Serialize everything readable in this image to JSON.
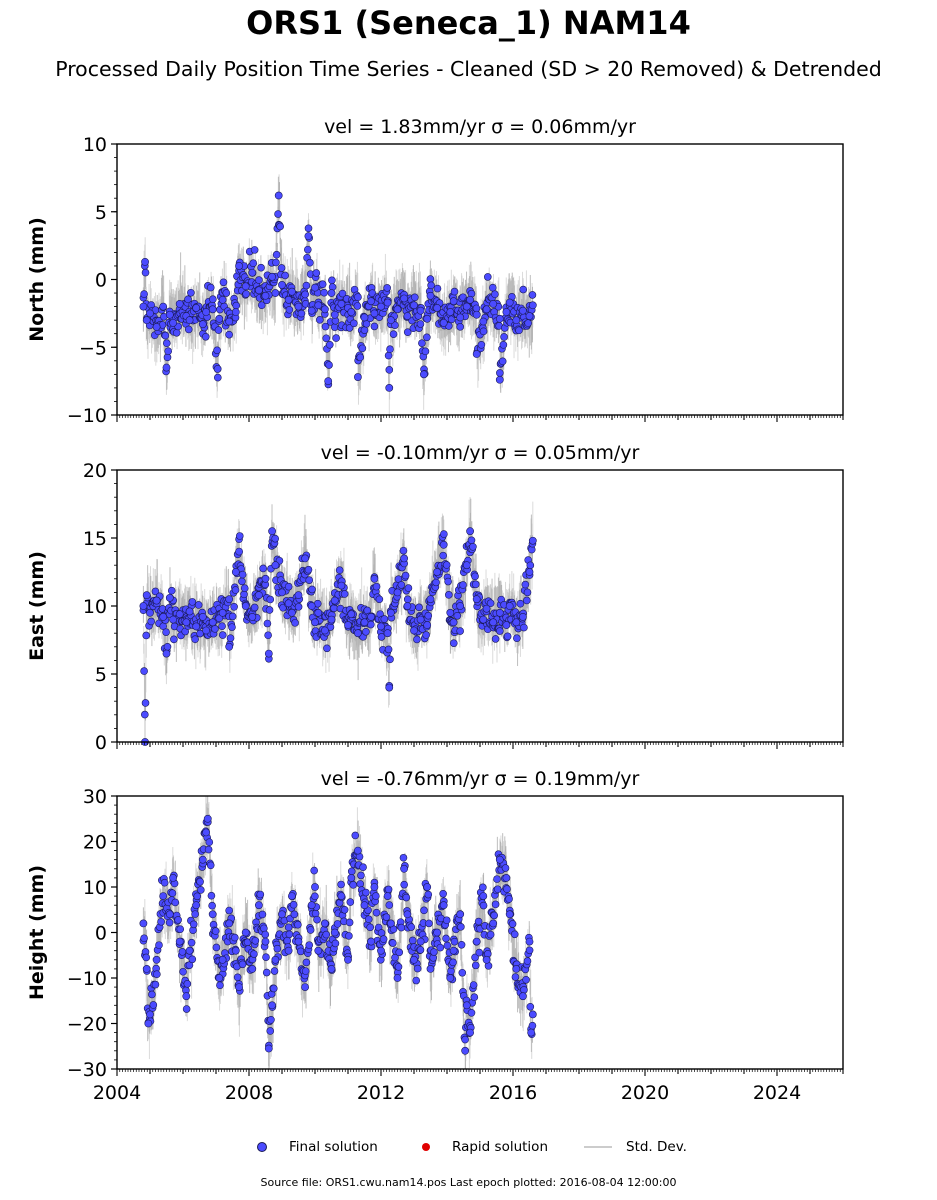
{
  "figure": {
    "title": "ORS1 (Seneca_1) NAM14",
    "subtitle": "Processed Daily Position Time Series - Cleaned (SD > 20 Removed) & Detrended",
    "source_note": "Source file: ORS1.cwu.nam14.pos  Last epoch plotted: 2016-08-04 12:00:00"
  },
  "legend": {
    "final_label": "Final solution",
    "rapid_label": "Rapid solution",
    "std_label": "Std. Dev."
  },
  "colors": {
    "final": "#4b4bff",
    "final_edge": "#1a1a55",
    "rapid": "#e00000",
    "std_dev": "#bdbdbd",
    "axes": "#000000"
  },
  "chart_data": [
    {
      "type": "scatter",
      "title": "vel = 1.83mm/yr   σ = 0.06mm/yr",
      "ylabel": "North (mm)",
      "xlim": [
        2004.0,
        2026.0
      ],
      "ylim": [
        -10,
        10
      ],
      "y_ticks": [
        -10,
        -5,
        0,
        5,
        10
      ],
      "x_ticks": [
        2004,
        2008,
        2012,
        2016,
        2020,
        2024
      ],
      "x_range_data": [
        2004.8,
        2016.6
      ],
      "grid": false,
      "series": [
        {
          "name": "Final solution",
          "x": [
            2004.8,
            2004.85,
            2004.9,
            2005.0,
            2005.2,
            2005.4,
            2005.6,
            2005.7,
            2005.9,
            2006.1,
            2006.2,
            2006.4,
            2006.6,
            2006.7,
            2006.9,
            2007.1,
            2007.2,
            2007.4,
            2007.6,
            2007.7,
            2007.9,
            2008.1,
            2008.3,
            2008.5,
            2008.7,
            2008.8,
            2009.0,
            2009.2,
            2009.3,
            2009.5,
            2009.7,
            2009.9,
            2010.0,
            2010.1,
            2010.3,
            2010.5,
            2010.6,
            2010.8,
            2011.0,
            2011.1,
            2011.3,
            2011.5,
            2011.7,
            2011.8,
            2012.0,
            2012.2,
            2012.3,
            2012.5,
            2012.7,
            2012.8,
            2013.0,
            2013.2,
            2013.4,
            2013.5,
            2013.7,
            2013.9,
            2014.1,
            2014.2,
            2014.4,
            2014.6,
            2014.7,
            2014.9,
            2015.1,
            2015.2,
            2015.4,
            2015.6,
            2015.8,
            2015.9,
            2016.1,
            2016.3,
            2016.5,
            2016.6,
            2008.9,
            2009.8,
            2010.4,
            2011.3,
            2012.25,
            2007.05,
            2005.5,
            2013.3,
            2014.9,
            2015.6
          ],
          "y": [
            -2.0,
            1.3,
            -3.0,
            -2.5,
            -3.5,
            -2.0,
            -2.6,
            -3.2,
            -1.8,
            -2.7,
            -3.0,
            -2.1,
            -3.3,
            -2.4,
            -2.2,
            -2.9,
            -1.5,
            -3.1,
            -2.4,
            1.0,
            -0.5,
            0.5,
            -0.8,
            -1.2,
            0.2,
            -1.0,
            -0.4,
            -1.5,
            -0.9,
            -2.0,
            -1.1,
            -2.3,
            -0.6,
            -1.9,
            -2.2,
            -1.0,
            -2.6,
            -1.8,
            -2.1,
            -2.4,
            -1.3,
            -2.8,
            -1.6,
            -2.5,
            -2.0,
            -1.7,
            -3.0,
            -2.2,
            -1.4,
            -2.7,
            -1.9,
            -2.3,
            -2.9,
            -1.2,
            -2.1,
            -3.2,
            -2.4,
            -1.6,
            -2.8,
            -2.0,
            -1.5,
            -2.6,
            -3.1,
            -2.2,
            -1.8,
            -2.9,
            -2.4,
            -1.7,
            -3.0,
            -2.3,
            -2.7,
            -1.9,
            6.2,
            3.2,
            -7.5,
            -7.2,
            -8.0,
            -6.6,
            -6.5,
            -7.0,
            -5.5,
            -7.4
          ]
        },
        {
          "name": "Rapid solution",
          "x": [],
          "y": []
        }
      ]
    },
    {
      "type": "scatter",
      "title": "vel = -0.10mm/yr   σ = 0.05mm/yr",
      "ylabel": "East (mm)",
      "xlim": [
        2004.0,
        2026.0
      ],
      "ylim": [
        0,
        20
      ],
      "y_ticks": [
        0,
        5,
        10,
        15,
        20
      ],
      "x_ticks": [
        2004,
        2008,
        2012,
        2016,
        2020,
        2024
      ],
      "x_range_data": [
        2004.8,
        2016.6
      ],
      "grid": false,
      "series": [
        {
          "name": "Final solution",
          "x": [
            2004.8,
            2004.9,
            2005.0,
            2005.2,
            2005.4,
            2005.6,
            2005.7,
            2005.9,
            2006.1,
            2006.2,
            2006.4,
            2006.6,
            2006.7,
            2006.9,
            2007.1,
            2007.2,
            2007.4,
            2007.6,
            2007.7,
            2007.9,
            2008.1,
            2008.3,
            2008.5,
            2008.7,
            2008.8,
            2009.0,
            2009.2,
            2009.3,
            2009.5,
            2009.7,
            2009.9,
            2010.0,
            2010.1,
            2010.3,
            2010.5,
            2010.6,
            2010.8,
            2011.0,
            2011.1,
            2011.3,
            2011.5,
            2011.7,
            2011.8,
            2012.0,
            2012.2,
            2012.3,
            2012.5,
            2012.7,
            2012.8,
            2013.0,
            2013.2,
            2013.4,
            2013.5,
            2013.7,
            2013.9,
            2014.1,
            2014.2,
            2014.4,
            2014.6,
            2014.7,
            2014.9,
            2015.1,
            2015.2,
            2015.4,
            2015.6,
            2015.8,
            2015.9,
            2016.1,
            2016.3,
            2016.5,
            2016.6,
            2004.85,
            2012.25,
            2008.6,
            2007.4,
            2005.5
          ],
          "y": [
            10.0,
            10.8,
            9.5,
            10.4,
            9.2,
            10.6,
            9.0,
            9.4,
            8.8,
            9.6,
            8.5,
            9.2,
            8.2,
            8.8,
            9.1,
            9.5,
            10.5,
            12.5,
            14.0,
            10.0,
            9.2,
            10.8,
            12.0,
            15.5,
            13.0,
            11.0,
            10.2,
            9.5,
            10.8,
            13.5,
            10.0,
            8.8,
            9.5,
            8.2,
            9.0,
            10.4,
            11.5,
            8.6,
            9.4,
            8.0,
            8.8,
            9.2,
            12.0,
            8.5,
            8.0,
            9.5,
            11.0,
            13.5,
            10.0,
            8.2,
            9.0,
            8.6,
            10.5,
            12.5,
            14.5,
            9.5,
            8.8,
            10.0,
            13.0,
            15.5,
            10.5,
            9.0,
            9.8,
            8.8,
            9.5,
            8.6,
            10.0,
            8.8,
            9.2,
            12.5,
            14.8,
            0.0,
            4.0,
            6.5,
            7.0,
            6.5
          ]
        },
        {
          "name": "Rapid solution",
          "x": [],
          "y": []
        }
      ]
    },
    {
      "type": "scatter",
      "title": "vel = -0.76mm/yr   σ = 0.19mm/yr",
      "ylabel": "Height (mm)",
      "xlim": [
        2004.0,
        2026.0
      ],
      "ylim": [
        -30,
        30
      ],
      "y_ticks": [
        -30,
        -20,
        -10,
        0,
        10,
        20,
        30
      ],
      "x_ticks": [
        2004,
        2008,
        2012,
        2016,
        2020,
        2024
      ],
      "x_ticklabels": [
        "2004",
        "2008",
        "2012",
        "2016",
        "2020",
        "2024"
      ],
      "x_range_data": [
        2004.8,
        2016.6
      ],
      "grid": false,
      "series": [
        {
          "name": "Final solution",
          "x": [
            2004.8,
            2004.9,
            2005.0,
            2005.2,
            2005.4,
            2005.6,
            2005.7,
            2005.9,
            2006.1,
            2006.2,
            2006.4,
            2006.6,
            2006.7,
            2006.9,
            2007.1,
            2007.2,
            2007.4,
            2007.6,
            2007.7,
            2007.9,
            2008.1,
            2008.3,
            2008.5,
            2008.7,
            2008.8,
            2009.0,
            2009.2,
            2009.3,
            2009.5,
            2009.7,
            2009.9,
            2010.0,
            2010.1,
            2010.3,
            2010.5,
            2010.6,
            2010.8,
            2011.0,
            2011.1,
            2011.3,
            2011.5,
            2011.7,
            2011.8,
            2012.0,
            2012.2,
            2012.3,
            2012.5,
            2012.7,
            2012.8,
            2013.0,
            2013.2,
            2013.4,
            2013.5,
            2013.7,
            2013.9,
            2014.1,
            2014.2,
            2014.4,
            2014.6,
            2014.7,
            2014.9,
            2015.1,
            2015.2,
            2015.4,
            2015.6,
            2015.8,
            2015.9,
            2016.1,
            2016.3,
            2016.5,
            2016.6,
            2004.95,
            2006.75,
            2008.6,
            2014.55,
            2016.55
          ],
          "y": [
            2.0,
            -8.0,
            -18.0,
            -6.0,
            8.0,
            4.0,
            12.0,
            -2.0,
            -14.0,
            -4.0,
            6.0,
            16.0,
            22.0,
            4.0,
            -10.0,
            -6.0,
            2.0,
            -4.0,
            -12.0,
            0.0,
            -8.0,
            6.0,
            -2.0,
            -16.0,
            -6.0,
            4.0,
            -4.0,
            8.0,
            -2.0,
            -12.0,
            6.0,
            10.0,
            -4.0,
            2.0,
            -8.0,
            0.0,
            8.0,
            -6.0,
            12.0,
            18.0,
            6.0,
            -2.0,
            10.0,
            -4.0,
            8.0,
            2.0,
            -10.0,
            14.0,
            4.0,
            -6.0,
            -2.0,
            10.0,
            -8.0,
            0.0,
            6.0,
            -10.0,
            -4.0,
            4.0,
            -16.0,
            -22.0,
            -2.0,
            8.0,
            -6.0,
            2.0,
            16.0,
            12.0,
            4.0,
            -8.0,
            -14.0,
            -2.0,
            -18.0,
            -20.0,
            25.0,
            -25.5,
            -26.0,
            -22.0
          ]
        },
        {
          "name": "Rapid solution",
          "x": [],
          "y": []
        }
      ]
    }
  ]
}
